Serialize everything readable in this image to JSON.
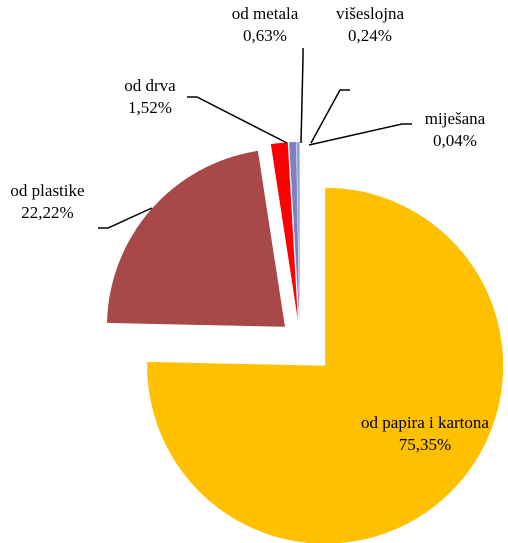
{
  "chart_data": {
    "type": "pie",
    "categories": [
      "od papira i kartona",
      "od plastike",
      "od drva",
      "od metala",
      "višeslojna",
      "miješana"
    ],
    "values": [
      75.35,
      22.22,
      1.52,
      0.63,
      0.24,
      0.04
    ],
    "value_labels": [
      "75,35%",
      "22,22%",
      "1,52%",
      "0,63%",
      "0,24%",
      "0,04%"
    ],
    "colors": [
      "#FFC000",
      "#A84848",
      "#FF0000",
      "#7F7FC4",
      "#8EA6C6",
      "#B4C4D4"
    ]
  }
}
